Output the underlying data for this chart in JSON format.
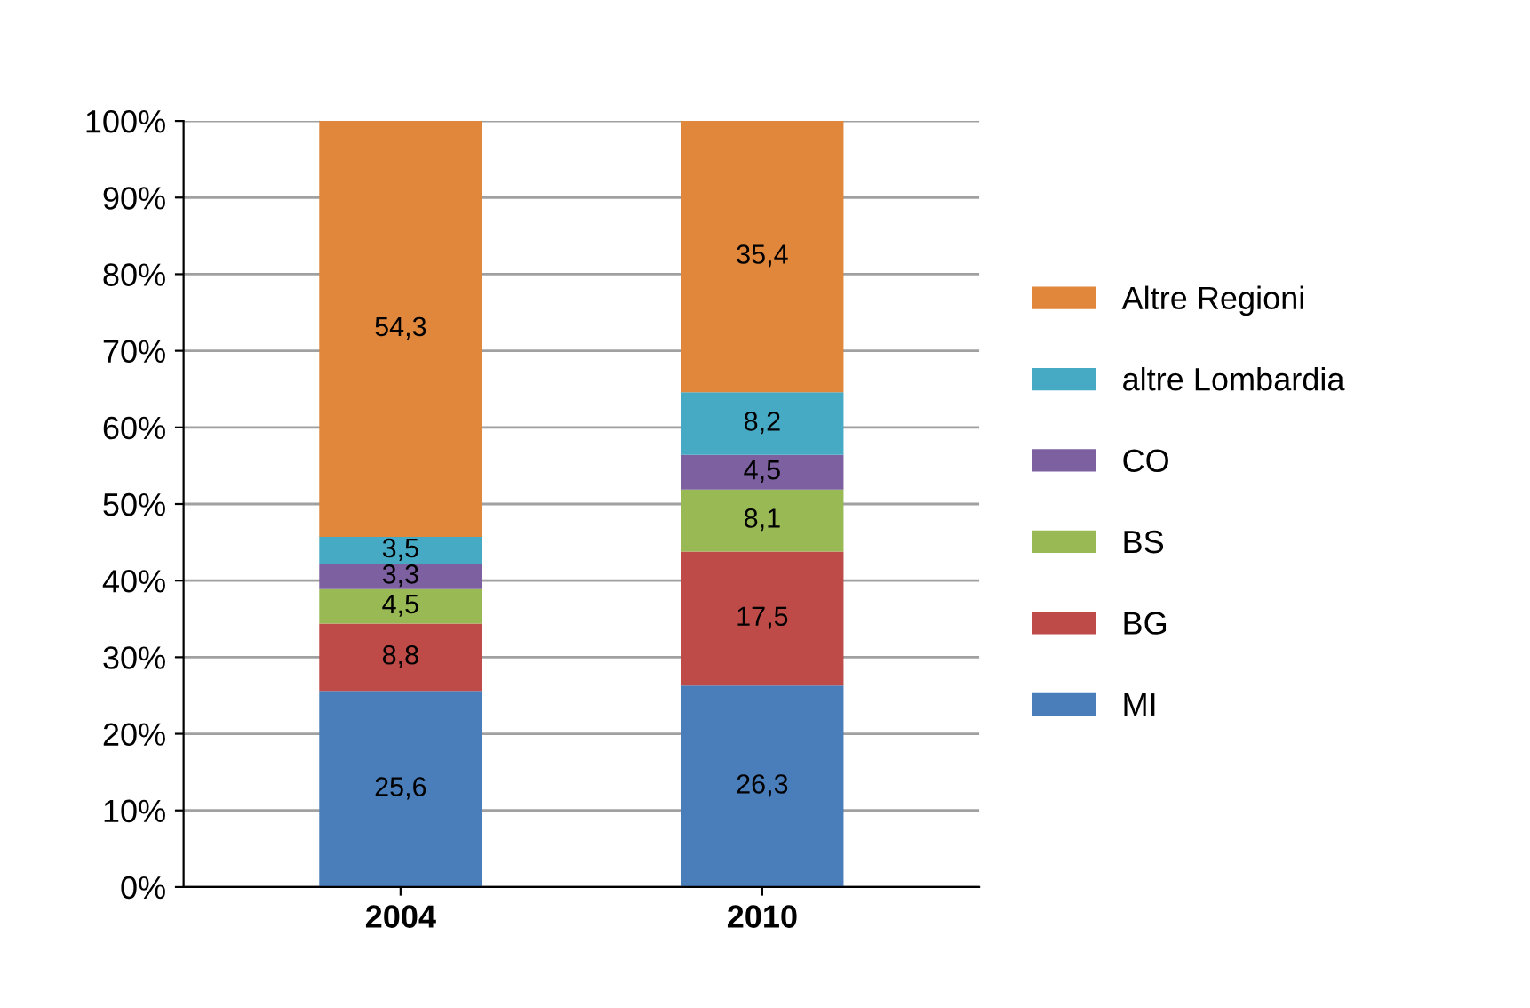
{
  "chart_data": {
    "type": "bar",
    "stacked": true,
    "categories": [
      "2004",
      "2010"
    ],
    "series": [
      {
        "name": "MI",
        "color": "#4a7ebb",
        "values": [
          25.6,
          26.3
        ],
        "value_labels": [
          "25,6",
          "26,3"
        ]
      },
      {
        "name": "BG",
        "color": "#be4b48",
        "values": [
          8.8,
          17.5
        ],
        "value_labels": [
          "8,8",
          "17,5"
        ]
      },
      {
        "name": "BS",
        "color": "#98b954",
        "values": [
          4.5,
          8.1
        ],
        "value_labels": [
          "4,5",
          "8,1"
        ]
      },
      {
        "name": "CO",
        "color": "#7d60a0",
        "values": [
          3.3,
          4.5
        ],
        "value_labels": [
          "3,3",
          "4,5"
        ]
      },
      {
        "name": "altre Lombardia",
        "color": "#46aac5",
        "values": [
          3.5,
          8.2
        ],
        "value_labels": [
          "3,5",
          "8,2"
        ]
      },
      {
        "name": "Altre Regioni",
        "color": "#e0873c",
        "values": [
          54.3,
          35.4
        ],
        "value_labels": [
          "54,3",
          "35,4"
        ]
      }
    ],
    "ylim": [
      0,
      100
    ],
    "yticks": [
      {
        "value": 0,
        "label": "0%"
      },
      {
        "value": 10,
        "label": "10%"
      },
      {
        "value": 20,
        "label": "20%"
      },
      {
        "value": 30,
        "label": "30%"
      },
      {
        "value": 40,
        "label": "40%"
      },
      {
        "value": 50,
        "label": "50%"
      },
      {
        "value": 60,
        "label": "60%"
      },
      {
        "value": 70,
        "label": "70%"
      },
      {
        "value": 80,
        "label": "80%"
      },
      {
        "value": 90,
        "label": "90%"
      },
      {
        "value": 100,
        "label": "100%"
      }
    ],
    "grid": "y",
    "legend": "right"
  }
}
